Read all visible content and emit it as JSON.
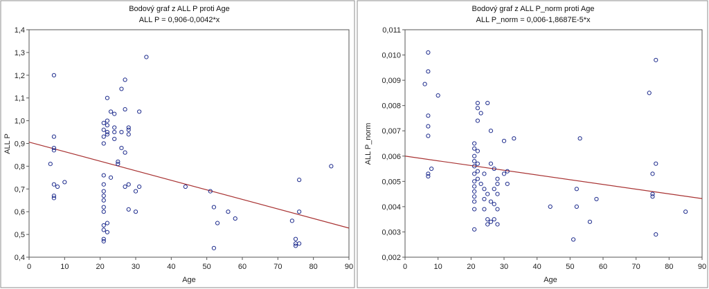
{
  "chart_data": [
    {
      "type": "scatter",
      "title": "Bodový graf z ALL P proti Age",
      "subtitle": "ALL P = 0,906-0,0042*x",
      "xlabel": "Age",
      "ylabel": "ALL P",
      "xlim": [
        0,
        90
      ],
      "ylim": [
        0.4,
        1.4
      ],
      "x_ticks": [
        "0",
        "10",
        "20",
        "30",
        "40",
        "50",
        "60",
        "70",
        "80",
        "90"
      ],
      "y_ticks": [
        "0,4",
        "0,5",
        "0,6",
        "0,7",
        "0,8",
        "0,9",
        "1,0",
        "1,1",
        "1,2",
        "1,3",
        "1,4"
      ],
      "grid": false,
      "marker_color": "#1c2a8c",
      "line_color": "#a83232",
      "fit": {
        "intercept": 0.906,
        "slope": -0.0042
      },
      "points": [
        [
          6,
          0.81
        ],
        [
          7,
          1.2
        ],
        [
          7,
          0.93
        ],
        [
          7,
          0.88
        ],
        [
          7,
          0.87
        ],
        [
          7,
          0.72
        ],
        [
          7,
          0.67
        ],
        [
          7,
          0.66
        ],
        [
          8,
          0.71
        ],
        [
          10,
          0.73
        ],
        [
          21,
          0.99
        ],
        [
          21,
          0.96
        ],
        [
          21,
          0.93
        ],
        [
          21,
          0.9
        ],
        [
          21,
          0.76
        ],
        [
          21,
          0.72
        ],
        [
          21,
          0.69
        ],
        [
          21,
          0.67
        ],
        [
          21,
          0.65
        ],
        [
          21,
          0.62
        ],
        [
          21,
          0.6
        ],
        [
          21,
          0.54
        ],
        [
          21,
          0.52
        ],
        [
          21,
          0.48
        ],
        [
          21,
          0.47
        ],
        [
          22,
          1.1
        ],
        [
          22,
          1.0
        ],
        [
          22,
          0.98
        ],
        [
          22,
          0.95
        ],
        [
          22,
          0.94
        ],
        [
          22,
          0.55
        ],
        [
          22,
          0.51
        ],
        [
          23,
          1.04
        ],
        [
          23,
          0.75
        ],
        [
          24,
          1.03
        ],
        [
          24,
          0.97
        ],
        [
          24,
          0.95
        ],
        [
          24,
          0.92
        ],
        [
          25,
          0.82
        ],
        [
          25,
          0.81
        ],
        [
          26,
          1.14
        ],
        [
          26,
          0.95
        ],
        [
          26,
          0.88
        ],
        [
          27,
          1.18
        ],
        [
          27,
          1.05
        ],
        [
          27,
          0.86
        ],
        [
          27,
          0.71
        ],
        [
          28,
          0.97
        ],
        [
          28,
          0.96
        ],
        [
          28,
          0.94
        ],
        [
          28,
          0.72
        ],
        [
          28,
          0.61
        ],
        [
          30,
          0.69
        ],
        [
          30,
          0.6
        ],
        [
          31,
          1.04
        ],
        [
          31,
          0.71
        ],
        [
          33,
          1.28
        ],
        [
          44,
          0.71
        ],
        [
          51,
          0.69
        ],
        [
          52,
          0.62
        ],
        [
          52,
          0.44
        ],
        [
          53,
          0.55
        ],
        [
          56,
          0.6
        ],
        [
          58,
          0.57
        ],
        [
          74,
          0.56
        ],
        [
          75,
          0.48
        ],
        [
          75,
          0.46
        ],
        [
          75,
          0.45
        ],
        [
          76,
          0.74
        ],
        [
          76,
          0.6
        ],
        [
          76,
          0.46
        ],
        [
          85,
          0.8
        ]
      ]
    },
    {
      "type": "scatter",
      "title": "Bodový graf z ALL P_norm proti Age",
      "subtitle": "ALL P_norm = 0,006-1,8687E-5*x",
      "xlabel": "Age",
      "ylabel": "ALL P_norm",
      "xlim": [
        0,
        90
      ],
      "ylim": [
        0.002,
        0.011
      ],
      "x_ticks": [
        "0",
        "10",
        "20",
        "30",
        "40",
        "50",
        "60",
        "70",
        "80",
        "90"
      ],
      "y_ticks": [
        "0,002",
        "0,003",
        "0,004",
        "0,005",
        "0,006",
        "0,007",
        "0,008",
        "0,009",
        "0,010",
        "0,011"
      ],
      "grid": false,
      "marker_color": "#1c2a8c",
      "line_color": "#a83232",
      "fit": {
        "intercept": 0.006,
        "slope": -1.8687e-05
      },
      "points": [
        [
          6,
          0.00885
        ],
        [
          7,
          0.0101
        ],
        [
          7,
          0.00935
        ],
        [
          7,
          0.0076
        ],
        [
          7,
          0.00718
        ],
        [
          7,
          0.0068
        ],
        [
          7,
          0.0053
        ],
        [
          7,
          0.0052
        ],
        [
          8,
          0.0055
        ],
        [
          10,
          0.0084
        ],
        [
          21,
          0.0065
        ],
        [
          21,
          0.0063
        ],
        [
          21,
          0.006
        ],
        [
          21,
          0.0058
        ],
        [
          21,
          0.0056
        ],
        [
          21,
          0.0053
        ],
        [
          21,
          0.005
        ],
        [
          21,
          0.0048
        ],
        [
          21,
          0.0046
        ],
        [
          21,
          0.0044
        ],
        [
          21,
          0.0042
        ],
        [
          21,
          0.0039
        ],
        [
          21,
          0.0031
        ],
        [
          22,
          0.0081
        ],
        [
          22,
          0.0079
        ],
        [
          22,
          0.0074
        ],
        [
          22,
          0.0062
        ],
        [
          22,
          0.0057
        ],
        [
          22,
          0.0054
        ],
        [
          22,
          0.0051
        ],
        [
          23,
          0.0077
        ],
        [
          23,
          0.0049
        ],
        [
          24,
          0.0053
        ],
        [
          24,
          0.0047
        ],
        [
          24,
          0.0043
        ],
        [
          24,
          0.0039
        ],
        [
          25,
          0.0081
        ],
        [
          25,
          0.0045
        ],
        [
          25,
          0.0035
        ],
        [
          25,
          0.0033
        ],
        [
          26,
          0.007
        ],
        [
          26,
          0.0057
        ],
        [
          26,
          0.0042
        ],
        [
          26,
          0.0034
        ],
        [
          27,
          0.0055
        ],
        [
          27,
          0.0047
        ],
        [
          27,
          0.0041
        ],
        [
          27,
          0.0035
        ],
        [
          28,
          0.0051
        ],
        [
          28,
          0.0049
        ],
        [
          28,
          0.0045
        ],
        [
          28,
          0.0039
        ],
        [
          28,
          0.0033
        ],
        [
          30,
          0.0066
        ],
        [
          30,
          0.0053
        ],
        [
          31,
          0.0054
        ],
        [
          31,
          0.0049
        ],
        [
          33,
          0.0067
        ],
        [
          44,
          0.004
        ],
        [
          51,
          0.0027
        ],
        [
          52,
          0.0047
        ],
        [
          52,
          0.004
        ],
        [
          53,
          0.0067
        ],
        [
          56,
          0.0034
        ],
        [
          58,
          0.0043
        ],
        [
          74,
          0.0085
        ],
        [
          75,
          0.0053
        ],
        [
          75,
          0.0045
        ],
        [
          75,
          0.0044
        ],
        [
          76,
          0.0098
        ],
        [
          76,
          0.0057
        ],
        [
          76,
          0.0029
        ],
        [
          85,
          0.0038
        ]
      ]
    }
  ]
}
